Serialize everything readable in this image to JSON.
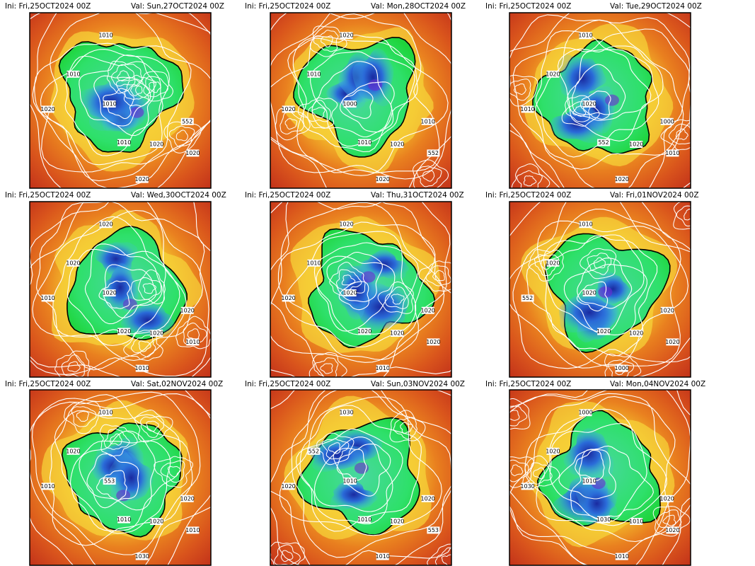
{
  "panels": [
    {
      "ini": "Ini: Fri,25OCT2024 00Z",
      "val": "Val: Sun,27OCT2024 00Z",
      "labels": [
        "1010",
        "1010",
        "1020",
        "1010",
        "552",
        "1020",
        "1010",
        "1020",
        "1020"
      ]
    },
    {
      "ini": "Ini: Fri,25OCT2024 00Z",
      "val": "Val: Mon,28OCT2024 00Z",
      "labels": [
        "1010",
        "1020",
        "1000",
        "1010",
        "552",
        "1010",
        "1020",
        "1020",
        "1020"
      ]
    },
    {
      "ini": "Ini: Fri,25OCT2024 00Z",
      "val": "Val: Tue,29OCT2024 00Z",
      "labels": [
        "1010",
        "1020",
        "1000",
        "1010",
        "552",
        "1020",
        "1020",
        "1010",
        "1020"
      ]
    },
    {
      "ini": "Ini: Fri,25OCT2024 00Z",
      "val": "Val: Wed,30OCT2024 00Z",
      "labels": [
        "1020",
        "1020",
        "1010",
        "1020",
        "1020",
        "1010",
        "1020",
        "1020",
        "1010"
      ]
    },
    {
      "ini": "Ini: Fri,25OCT2024 00Z",
      "val": "Val: Thu,31OCT2024 00Z",
      "labels": [
        "1020",
        "1020",
        "1020",
        "1020",
        "1010",
        "1020",
        "1010",
        "1020",
        "1020"
      ]
    },
    {
      "ini": "Ini: Fri,25OCT2024 00Z",
      "val": "Val: Fri,01NOV2024 00Z",
      "labels": [
        "1020",
        "1020",
        "1020",
        "1000",
        "1010",
        "1020",
        "552",
        "1020",
        "1020"
      ]
    },
    {
      "ini": "Ini: Fri,25OCT2024 00Z",
      "val": "Val: Sat,02NOV2024 00Z",
      "labels": [
        "1010",
        "1020",
        "1030",
        "1010",
        "1020",
        "1010",
        "553",
        "1020",
        "1010"
      ]
    },
    {
      "ini": "Ini: Fri,25OCT2024 00Z",
      "val": "Val: Sun,03NOV2024 00Z",
      "labels": [
        "1020",
        "1010",
        "1030",
        "552",
        "1020",
        "1010",
        "1020",
        "553",
        "1010"
      ]
    },
    {
      "ini": "Ini: Fri,25OCT2024 00Z",
      "val": "Val: Mon,04NOV2024 00Z",
      "labels": [
        "1010",
        "1000",
        "1020",
        "1030",
        "1010",
        "1020",
        "1020",
        "1030",
        "1010"
      ]
    }
  ]
}
